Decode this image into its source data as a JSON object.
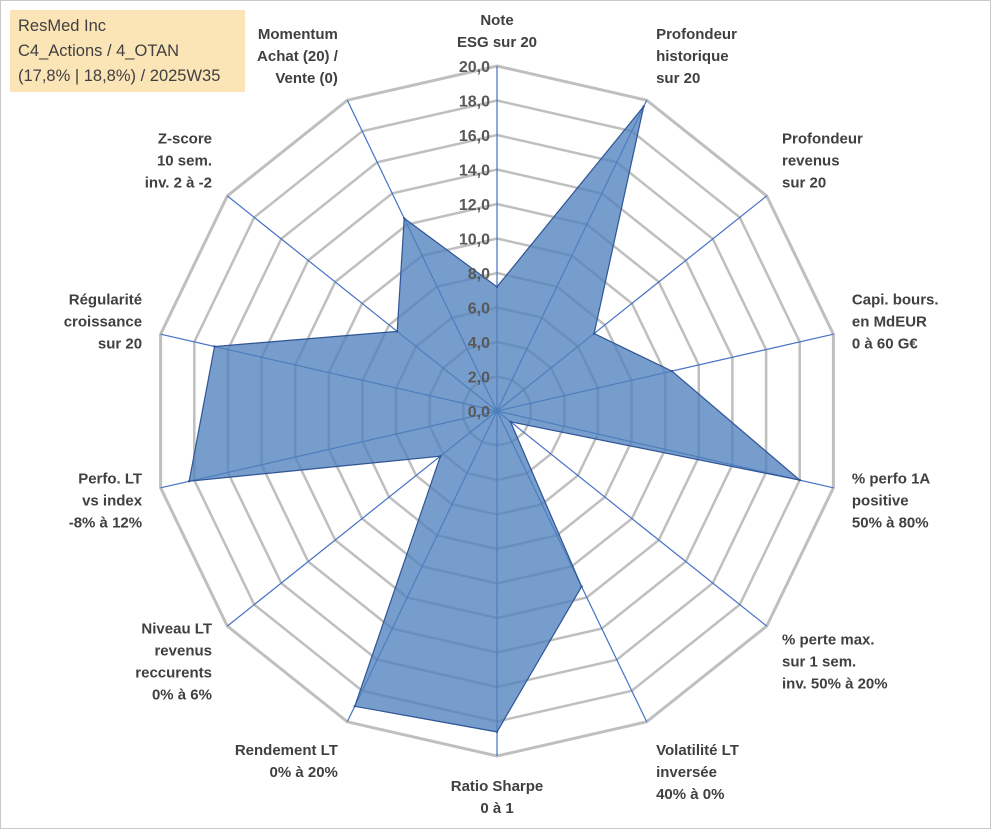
{
  "info": {
    "line1": "ResMed Inc",
    "line2": "C4_Actions / 4_OTAN",
    "line3": "(17,8% | 18,8%) / 2025W35"
  },
  "colors": {
    "grid": "#bfbfbf",
    "spoke": "#4472c4",
    "fill": "#4f81bd",
    "stroke": "#2f5597",
    "infobox": "#fbe5b6"
  },
  "chart_data": {
    "type": "radar",
    "rmin": 0,
    "rmax": 20,
    "ticks": [
      "0,0",
      "2,0",
      "4,0",
      "6,0",
      "8,0",
      "10,0",
      "12,0",
      "14,0",
      "16,0",
      "18,0",
      "20,0"
    ],
    "axes": [
      {
        "lines": [
          "Note",
          "ESG sur 20"
        ]
      },
      {
        "lines": [
          "Profondeur",
          "historique",
          "sur 20"
        ]
      },
      {
        "lines": [
          "Profondeur",
          "revenus",
          "sur 20"
        ]
      },
      {
        "lines": [
          "Capi. bours.",
          "en MdEUR",
          "0 à 60 G€"
        ]
      },
      {
        "lines": [
          "% perfo 1A",
          "positive",
          "50% à 80%"
        ]
      },
      {
        "lines": [
          "% perte max.",
          "sur 1 sem.",
          "inv. 50% à 20%"
        ]
      },
      {
        "lines": [
          "Volatilité LT",
          "inversée",
          "40% à 0%"
        ]
      },
      {
        "lines": [
          "Ratio Sharpe",
          "0 à 1"
        ]
      },
      {
        "lines": [
          "Rendement LT",
          "0% à 20%"
        ]
      },
      {
        "lines": [
          "Niveau LT",
          "revenus",
          "reccurents",
          "0% à 6%"
        ]
      },
      {
        "lines": [
          "Perfo. LT",
          "vs index",
          "-8% à 12%"
        ]
      },
      {
        "lines": [
          "Régularité",
          "croissance",
          "sur 20"
        ]
      },
      {
        "lines": [
          "Z-score",
          "10 sem.",
          "inv. 2 à -2"
        ]
      },
      {
        "lines": [
          "Momentum",
          "Achat (20) /",
          "Vente (0)"
        ]
      }
    ],
    "values": [
      7.2,
      19.6,
      7.2,
      10.4,
      18.0,
      1.0,
      11.3,
      18.6,
      19.0,
      4.2,
      18.3,
      16.8,
      7.4,
      12.4
    ],
    "grid": true,
    "legend": "none"
  }
}
